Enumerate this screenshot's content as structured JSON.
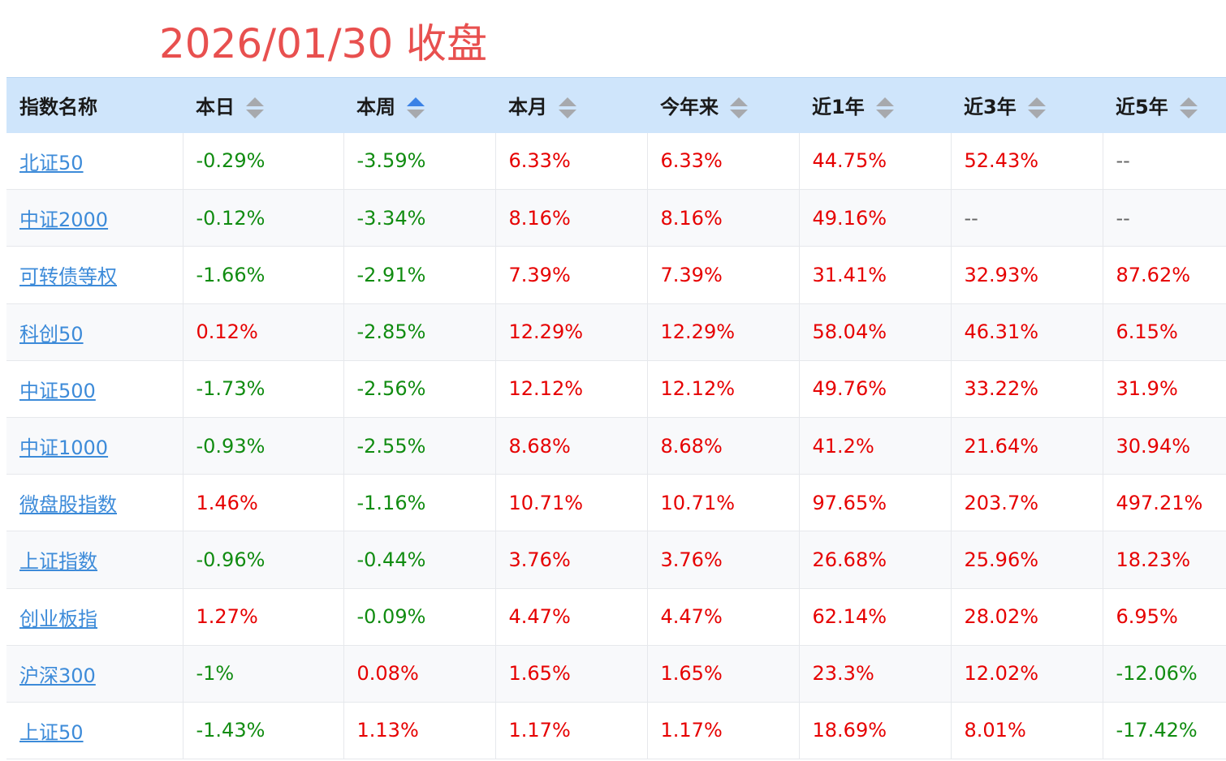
{
  "title": "2026/01/30 收盘",
  "columns": [
    {
      "label": "指数名称",
      "sortable": false
    },
    {
      "label": "本日",
      "sortable": true,
      "active": false
    },
    {
      "label": "本周",
      "sortable": true,
      "active": true
    },
    {
      "label": "本月",
      "sortable": true,
      "active": false
    },
    {
      "label": "今年来",
      "sortable": true,
      "active": false
    },
    {
      "label": "近1年",
      "sortable": true,
      "active": false
    },
    {
      "label": "近3年",
      "sortable": true,
      "active": false
    },
    {
      "label": "近5年",
      "sortable": true,
      "active": false
    }
  ],
  "rows": [
    {
      "name": "北证50",
      "values": [
        "-0.29%",
        "-3.59%",
        "6.33%",
        "6.33%",
        "44.75%",
        "52.43%",
        "--"
      ]
    },
    {
      "name": "中证2000",
      "values": [
        "-0.12%",
        "-3.34%",
        "8.16%",
        "8.16%",
        "49.16%",
        "--",
        "--"
      ]
    },
    {
      "name": "可转债等权",
      "values": [
        "-1.66%",
        "-2.91%",
        "7.39%",
        "7.39%",
        "31.41%",
        "32.93%",
        "87.62%"
      ]
    },
    {
      "name": "科创50",
      "values": [
        "0.12%",
        "-2.85%",
        "12.29%",
        "12.29%",
        "58.04%",
        "46.31%",
        "6.15%"
      ]
    },
    {
      "name": "中证500",
      "values": [
        "-1.73%",
        "-2.56%",
        "12.12%",
        "12.12%",
        "49.76%",
        "33.22%",
        "31.9%"
      ]
    },
    {
      "name": "中证1000",
      "values": [
        "-0.93%",
        "-2.55%",
        "8.68%",
        "8.68%",
        "41.2%",
        "21.64%",
        "30.94%"
      ]
    },
    {
      "name": "微盘股指数",
      "values": [
        "1.46%",
        "-1.16%",
        "10.71%",
        "10.71%",
        "97.65%",
        "203.7%",
        "497.21%"
      ]
    },
    {
      "name": "上证指数",
      "values": [
        "-0.96%",
        "-0.44%",
        "3.76%",
        "3.76%",
        "26.68%",
        "25.96%",
        "18.23%"
      ]
    },
    {
      "name": "创业板指",
      "values": [
        "1.27%",
        "-0.09%",
        "4.47%",
        "4.47%",
        "62.14%",
        "28.02%",
        "6.95%"
      ]
    },
    {
      "name": "沪深300",
      "values": [
        "-1%",
        "0.08%",
        "1.65%",
        "1.65%",
        "23.3%",
        "12.02%",
        "-12.06%"
      ]
    },
    {
      "name": "上证50",
      "values": [
        "-1.43%",
        "1.13%",
        "1.17%",
        "1.17%",
        "18.69%",
        "8.01%",
        "-17.42%"
      ]
    }
  ],
  "colors": {
    "title": "#e8504f",
    "header_bg": "#cfe5fb",
    "positive": "#e60000",
    "negative": "#118c11",
    "link": "#3d8bd9",
    "sort_active": "#3b82e6",
    "sort_inactive": "#a7a9ad"
  },
  "icons": {
    "sort": "sort-arrows-icon"
  }
}
